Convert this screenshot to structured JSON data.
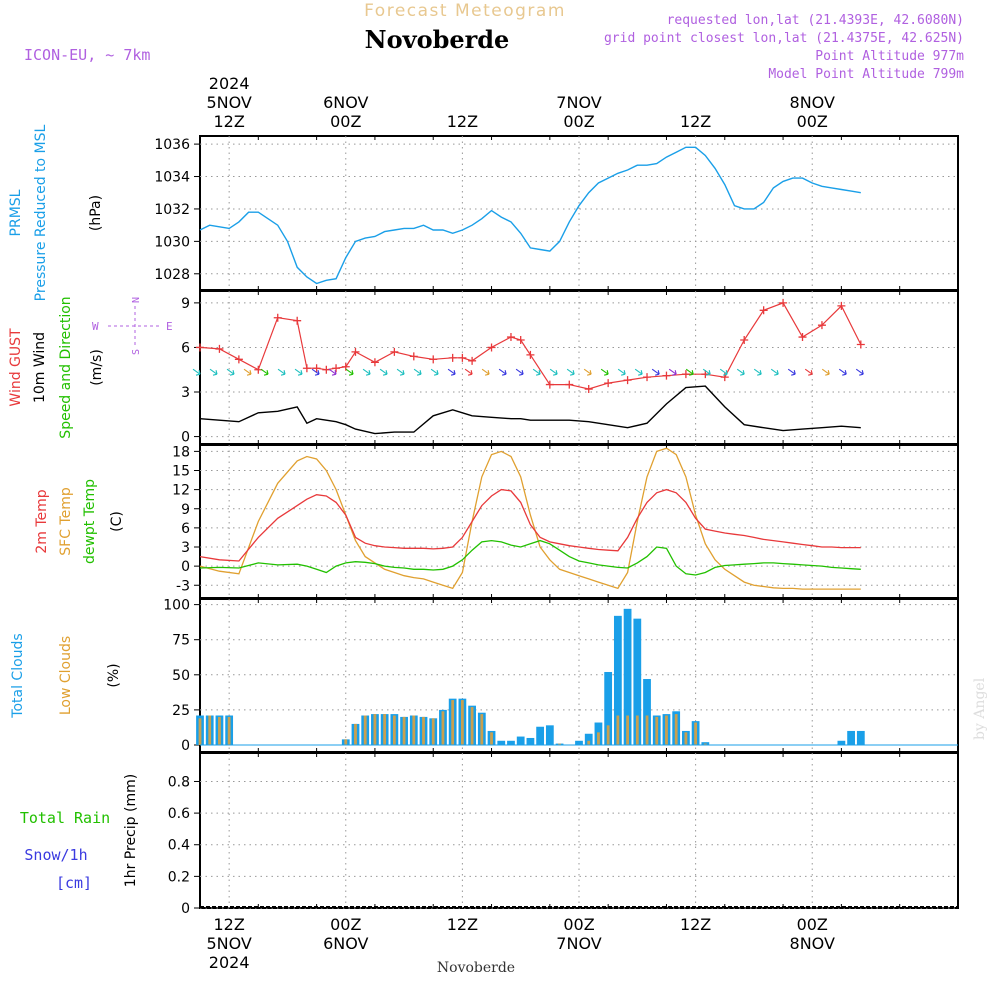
{
  "header": {
    "overline": "Forecast Meteogram",
    "title": "Novoberde",
    "model": "ICON-EU, ~ 7km",
    "requested": "requested lon,lat (21.4393E, 42.6080N)",
    "gridpoint": "grid point closest lon,lat (21.4375E, 42.625N)",
    "point_altitude": "Point Altitude 977m",
    "model_altitude": "Model Point Altitude 799m",
    "footer_name": "Novoberde",
    "watermark": "by Angel"
  },
  "colors": {
    "pressure": "#1a9fe8",
    "gust": "#e8393b",
    "wind": "#000000",
    "wind_dir": "#22c000",
    "temp2m": "#e8393b",
    "sfc": "#e0a030",
    "dewpt": "#22c000",
    "total_clouds": "#1a9fe8",
    "low_clouds": "#c8a050",
    "rain": "#22c000",
    "snow": "#3a3ae0",
    "header_purple": "#b060e0",
    "overline": "#e8c890"
  },
  "time_axis": {
    "range_hours": [
      -3,
      75
    ],
    "top_labels": [
      {
        "h": 0,
        "lines": [
          "2024",
          "5NOV",
          "12Z"
        ]
      },
      {
        "h": 12,
        "lines": [
          "6NOV",
          "00Z"
        ]
      },
      {
        "h": 24,
        "lines": [
          "12Z"
        ]
      },
      {
        "h": 36,
        "lines": [
          "7NOV",
          "00Z"
        ]
      },
      {
        "h": 48,
        "lines": [
          "12Z"
        ]
      },
      {
        "h": 60,
        "lines": [
          "8NOV",
          "00Z"
        ]
      }
    ],
    "bottom_labels": [
      {
        "h": 0,
        "lines": [
          "12Z",
          "5NOV",
          "2024"
        ]
      },
      {
        "h": 12,
        "lines": [
          "00Z",
          "6NOV"
        ]
      },
      {
        "h": 24,
        "lines": [
          "12Z"
        ]
      },
      {
        "h": 36,
        "lines": [
          "00Z",
          "7NOV"
        ]
      },
      {
        "h": 48,
        "lines": [
          "12Z"
        ]
      },
      {
        "h": 60,
        "lines": [
          "00Z",
          "8NOV"
        ]
      }
    ]
  },
  "panels": {
    "pressure": {
      "labels": [
        {
          "text": "PRMSL",
          "color": "#1a9fe8"
        },
        {
          "text": "Pressure Reduced to MSL",
          "color": "#1a9fe8"
        },
        {
          "text": "(hPa)",
          "color": "#000000"
        }
      ],
      "yticks": [
        1028,
        1030,
        1032,
        1034,
        1036
      ]
    },
    "wind": {
      "labels": [
        {
          "text": "Wind GUST",
          "color": "#e8393b"
        },
        {
          "text": "10m Wind",
          "color": "#000000"
        },
        {
          "text": "Speed and Direction",
          "color": "#22c000"
        },
        {
          "text": "(m/s)",
          "color": "#000000"
        }
      ],
      "compass": {
        "n": "N",
        "s": "S",
        "w": "W",
        "e": "E"
      },
      "yticks": [
        0,
        3,
        6,
        9
      ]
    },
    "temp": {
      "labels": [
        {
          "text": "2m Temp",
          "color": "#e8393b"
        },
        {
          "text": "SFC Temp",
          "color": "#e0a030"
        },
        {
          "text": "dewpt Temp",
          "color": "#22c000"
        },
        {
          "text": "(C)",
          "color": "#000000"
        }
      ],
      "yticks": [
        -3,
        0,
        3,
        6,
        9,
        12,
        15,
        18
      ]
    },
    "clouds": {
      "labels": [
        {
          "text": "Total Clouds",
          "color": "#1a9fe8"
        },
        {
          "text": "Low Clouds",
          "color": "#e0a030"
        },
        {
          "text": "(%)",
          "color": "#000000"
        }
      ],
      "yticks": [
        0,
        25,
        50,
        75,
        100
      ]
    },
    "precip": {
      "labels": [
        {
          "text": "1hr Precip (mm)",
          "color": "#000000"
        }
      ],
      "side_labels": [
        {
          "text": "Total  Rain",
          "color": "#22c000"
        },
        {
          "text": "Snow/1h",
          "color": "#3a3ae0"
        },
        {
          "text": "[cm]",
          "color": "#3a3ae0"
        }
      ],
      "yticks": [
        "0",
        "0.2",
        "0.4",
        "0.6",
        "0.8"
      ]
    }
  },
  "chart_data": [
    {
      "type": "line",
      "name": "pressure",
      "ylim": [
        1027,
        1036.5
      ],
      "x": [
        -3,
        -2,
        -1,
        0,
        1,
        2,
        3,
        4,
        5,
        6,
        7,
        8,
        9,
        10,
        11,
        12,
        13,
        14,
        15,
        16,
        17,
        18,
        19,
        20,
        21,
        22,
        23,
        24,
        25,
        26,
        27,
        28,
        29,
        30,
        31,
        32,
        33,
        34,
        35,
        36,
        37,
        38,
        39,
        40,
        41,
        42,
        43,
        44,
        45,
        46,
        47,
        48,
        49,
        50,
        51,
        52,
        53,
        54,
        55,
        56,
        57,
        58,
        59,
        60,
        61,
        62,
        63,
        64,
        65
      ],
      "y": [
        1030.7,
        1031.0,
        1030.9,
        1030.8,
        1031.2,
        1031.8,
        1031.8,
        1031.4,
        1031.0,
        1030.0,
        1028.4,
        1027.8,
        1027.4,
        1027.6,
        1027.7,
        1029.0,
        1030.0,
        1030.2,
        1030.3,
        1030.6,
        1030.7,
        1030.8,
        1030.8,
        1031.0,
        1030.7,
        1030.7,
        1030.5,
        1030.7,
        1031.0,
        1031.4,
        1031.9,
        1031.5,
        1031.2,
        1030.5,
        1029.6,
        1029.5,
        1029.4,
        1030.0,
        1031.2,
        1032.2,
        1033.0,
        1033.6,
        1033.9,
        1034.2,
        1034.4,
        1034.7,
        1034.7,
        1034.8,
        1035.2,
        1035.5,
        1035.8,
        1035.8,
        1035.3,
        1034.5,
        1033.5,
        1032.2,
        1032.0,
        1032.0,
        1032.4,
        1033.3,
        1033.7,
        1033.9,
        1033.9,
        1033.6,
        1033.4,
        1033.3,
        1033.2,
        1033.1,
        1033.0
      ]
    },
    {
      "type": "line",
      "name": "wind",
      "ylim": [
        -0.5,
        9.8
      ],
      "x": [
        -3,
        -1,
        1,
        3,
        5,
        7,
        8,
        9,
        10,
        11,
        12,
        13,
        15,
        17,
        19,
        21,
        23,
        24,
        25,
        27,
        29,
        30,
        31,
        33,
        35,
        37,
        39,
        41,
        43,
        45,
        47,
        49,
        51,
        53,
        55,
        57,
        59,
        61,
        63,
        65
      ],
      "speed": [
        1.2,
        1.1,
        1.0,
        1.6,
        1.7,
        2.0,
        0.9,
        1.2,
        1.1,
        1.0,
        0.8,
        0.5,
        0.2,
        0.3,
        0.3,
        1.4,
        1.8,
        1.6,
        1.4,
        1.3,
        1.2,
        1.2,
        1.1,
        1.1,
        1.1,
        1.0,
        0.8,
        0.6,
        0.9,
        2.2,
        3.3,
        3.4,
        2.0,
        0.8,
        0.6,
        0.4,
        0.5,
        0.6,
        0.7,
        0.6
      ],
      "gust": [
        6.0,
        5.9,
        5.2,
        4.5,
        8.0,
        7.8,
        4.6,
        4.6,
        4.5,
        4.6,
        4.7,
        5.7,
        5.0,
        5.7,
        5.4,
        5.2,
        5.3,
        5.3,
        5.1,
        6.0,
        6.7,
        6.5,
        5.5,
        3.5,
        3.5,
        3.2,
        3.6,
        3.8,
        4.0,
        4.1,
        4.2,
        4.2,
        4.0,
        6.5,
        8.5,
        9.0,
        6.7,
        7.5,
        8.8,
        6.2
      ]
    },
    {
      "type": "line",
      "name": "temperature",
      "ylim": [
        -5,
        19
      ],
      "x": [
        -3,
        -1,
        1,
        3,
        5,
        7,
        8,
        9,
        10,
        11,
        12,
        13,
        14,
        15,
        16,
        17,
        18,
        19,
        20,
        21,
        22,
        23,
        24,
        25,
        26,
        27,
        28,
        29,
        30,
        31,
        32,
        33,
        34,
        35,
        36,
        37,
        38,
        39,
        40,
        41,
        42,
        43,
        44,
        45,
        46,
        47,
        48,
        49,
        50,
        51,
        52,
        53,
        54,
        55,
        56,
        57,
        58,
        59,
        60,
        61,
        62,
        63,
        64,
        65
      ],
      "temp2m": [
        1.5,
        1.0,
        0.8,
        4.5,
        7.5,
        9.5,
        10.5,
        11.2,
        11.0,
        10.0,
        8.0,
        4.5,
        3.6,
        3.2,
        3.0,
        2.9,
        2.8,
        2.8,
        2.8,
        2.7,
        2.8,
        3.0,
        4.5,
        7.0,
        9.5,
        11.0,
        12.0,
        11.8,
        10.0,
        6.5,
        4.5,
        3.8,
        3.5,
        3.2,
        3.0,
        2.8,
        2.6,
        2.5,
        2.4,
        4.5,
        7.5,
        10.0,
        11.5,
        12.0,
        11.5,
        10.0,
        7.5,
        5.8,
        5.5,
        5.2,
        5.0,
        4.8,
        4.5,
        4.2,
        4.0,
        3.8,
        3.6,
        3.4,
        3.2,
        3.0,
        3.0,
        2.9,
        2.9,
        2.9
      ],
      "sfc": [
        0.0,
        -0.8,
        -1.2,
        7.0,
        13.0,
        16.5,
        17.2,
        16.8,
        15.0,
        12.0,
        8.0,
        4.0,
        1.5,
        0.5,
        -0.5,
        -1.0,
        -1.5,
        -1.8,
        -2.0,
        -2.5,
        -3.0,
        -3.5,
        -1.0,
        7.0,
        14.0,
        17.5,
        18.0,
        17.2,
        14.0,
        8.0,
        3.0,
        1.0,
        -0.5,
        -1.0,
        -1.5,
        -2.0,
        -2.5,
        -3.0,
        -3.5,
        -1.0,
        7.0,
        14.0,
        18.0,
        18.5,
        17.5,
        14.0,
        8.0,
        3.5,
        1.0,
        -0.5,
        -1.5,
        -2.5,
        -3.0,
        -3.2,
        -3.4,
        -3.5,
        -3.5,
        -3.6,
        -3.6,
        -3.6,
        -3.6,
        -3.6,
        -3.6,
        -3.6
      ],
      "dewpt": [
        -0.3,
        -0.2,
        -0.3,
        0.5,
        0.2,
        0.3,
        0.0,
        -0.5,
        -1.0,
        0.0,
        0.5,
        0.7,
        0.6,
        0.4,
        0.0,
        -0.2,
        -0.3,
        -0.5,
        -0.5,
        -0.6,
        -0.5,
        0.0,
        1.0,
        2.5,
        3.8,
        4.0,
        3.8,
        3.3,
        3.0,
        3.5,
        4.0,
        3.5,
        2.5,
        1.5,
        0.8,
        0.5,
        0.2,
        0.0,
        -0.2,
        -0.3,
        0.5,
        1.5,
        3.0,
        2.8,
        0.0,
        -1.2,
        -1.4,
        -1.0,
        -0.2,
        0.1,
        0.2,
        0.3,
        0.4,
        0.5,
        0.5,
        0.4,
        0.3,
        0.2,
        0.1,
        0.0,
        -0.2,
        -0.3,
        -0.4,
        -0.5
      ]
    },
    {
      "type": "bar",
      "name": "clouds",
      "ylim": [
        -5,
        104
      ],
      "x": [
        -3,
        -2,
        -1,
        0,
        1,
        2,
        3,
        4,
        5,
        6,
        7,
        8,
        9,
        10,
        11,
        12,
        13,
        14,
        15,
        16,
        17,
        18,
        19,
        20,
        21,
        22,
        23,
        24,
        25,
        26,
        27,
        28,
        29,
        30,
        31,
        32,
        33,
        34,
        35,
        36,
        37,
        38,
        39,
        40,
        41,
        42,
        43,
        44,
        45,
        46,
        47,
        48,
        49,
        50,
        51,
        52,
        53,
        54,
        55,
        56,
        57,
        58,
        59,
        60,
        61,
        62,
        63,
        64,
        65
      ],
      "total": [
        21,
        21,
        21,
        21,
        0,
        0,
        0,
        0,
        0,
        0,
        0,
        0,
        0,
        0,
        0,
        4,
        15,
        21,
        22,
        22,
        22,
        20,
        21,
        20,
        19,
        25,
        33,
        33,
        28,
        23,
        10,
        3,
        3,
        6,
        5,
        13,
        14,
        1,
        0,
        3,
        8,
        16,
        52,
        92,
        97,
        90,
        47,
        21,
        22,
        24,
        10,
        17,
        2,
        0,
        0,
        0,
        0,
        0,
        0,
        0,
        0,
        0,
        0,
        0,
        0,
        0,
        3,
        10,
        10
      ],
      "low": [
        19,
        21,
        20,
        20,
        0,
        0,
        0,
        0,
        0,
        0,
        0,
        0,
        0,
        0,
        0,
        4,
        15,
        21,
        22,
        22,
        21,
        20,
        21,
        20,
        19,
        24,
        32,
        32,
        27,
        22,
        9,
        0,
        0,
        0,
        0,
        0,
        0,
        1,
        0,
        0,
        3,
        9,
        14,
        21,
        21,
        21,
        21,
        20,
        21,
        22,
        9,
        16,
        1,
        0,
        0,
        0,
        0,
        0,
        0,
        0,
        0,
        0,
        0,
        0,
        0,
        0,
        0,
        0,
        0
      ]
    },
    {
      "type": "bar",
      "name": "precip",
      "ylim": [
        0,
        0.98
      ],
      "x": [
        -3,
        65
      ],
      "rain": [
        0,
        0
      ],
      "snow": [
        0,
        0
      ]
    }
  ]
}
